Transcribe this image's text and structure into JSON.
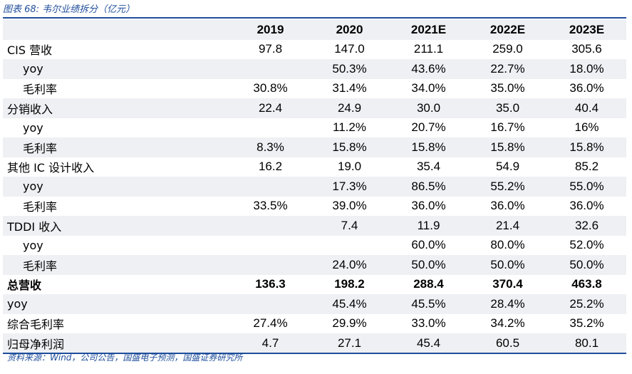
{
  "caption": "图表 68:  韦尔业绩拆分（亿元）",
  "headers": [
    "",
    "2019",
    "2020",
    "2021E",
    "2022E",
    "2023E"
  ],
  "rows": [
    {
      "label": "CIS 营收",
      "indent": false,
      "bold": false,
      "values": [
        "97.8",
        "147.0",
        "211.1",
        "259.0",
        "305.6"
      ]
    },
    {
      "label": "yoy",
      "indent": true,
      "bold": false,
      "values": [
        "",
        "50.3%",
        "43.6%",
        "22.7%",
        "18.0%"
      ]
    },
    {
      "label": "毛利率",
      "indent": true,
      "bold": false,
      "values": [
        "30.8%",
        "31.4%",
        "34.0%",
        "35.0%",
        "36.0%"
      ]
    },
    {
      "label": "分销收入",
      "indent": false,
      "bold": false,
      "values": [
        "22.4",
        "24.9",
        "30.0",
        "35.0",
        "40.4"
      ]
    },
    {
      "label": "yoy",
      "indent": true,
      "bold": false,
      "values": [
        "",
        "11.2%",
        "20.7%",
        "16.7%",
        "16%"
      ]
    },
    {
      "label": "毛利率",
      "indent": true,
      "bold": false,
      "values": [
        "8.3%",
        "15.8%",
        "15.8%",
        "15.8%",
        "15.8%"
      ]
    },
    {
      "label": "其他 IC 设计收入",
      "indent": false,
      "bold": false,
      "values": [
        "16.2",
        "19.0",
        "35.4",
        "54.9",
        "85.2"
      ]
    },
    {
      "label": "yoy",
      "indent": true,
      "bold": false,
      "values": [
        "",
        "17.3%",
        "86.5%",
        "55.2%",
        "55.0%"
      ]
    },
    {
      "label": "毛利率",
      "indent": true,
      "bold": false,
      "values": [
        "33.5%",
        "39.0%",
        "36.0%",
        "36.0%",
        "36.0%"
      ]
    },
    {
      "label": "TDDI 收入",
      "indent": false,
      "bold": false,
      "values": [
        "",
        "7.4",
        "11.9",
        "21.4",
        "32.6"
      ]
    },
    {
      "label": "yoy",
      "indent": true,
      "bold": false,
      "values": [
        "",
        "",
        "60.0%",
        "80.0%",
        "52.0%"
      ]
    },
    {
      "label": "毛利率",
      "indent": true,
      "bold": false,
      "values": [
        "",
        "24.0%",
        "50.0%",
        "50.0%",
        "50.0%"
      ]
    },
    {
      "label": "总营收",
      "indent": false,
      "bold": true,
      "values": [
        "136.3",
        "198.2",
        "288.4",
        "370.4",
        "463.8"
      ]
    },
    {
      "label": "yoy",
      "indent": false,
      "bold": false,
      "values": [
        "",
        "45.4%",
        "45.5%",
        "28.4%",
        "25.2%"
      ]
    },
    {
      "label": "综合毛利率",
      "indent": false,
      "bold": false,
      "values": [
        "27.4%",
        "29.9%",
        "33.0%",
        "34.2%",
        "35.2%"
      ]
    },
    {
      "label": "归母净利润",
      "indent": false,
      "bold": false,
      "values": [
        "4.7",
        "27.1",
        "45.4",
        "60.5",
        "80.1"
      ]
    }
  ],
  "source": "资料来源：Wind，公司公告，国盛电子预测，国盛证券研究所",
  "colors": {
    "accent": "#1f4e9b",
    "shade": "#eef0f4"
  }
}
